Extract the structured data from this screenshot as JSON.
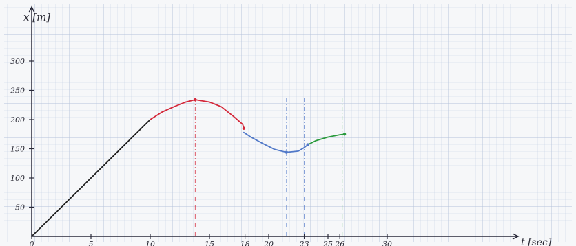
{
  "chart_data": {
    "type": "line",
    "xlabel": "t [sec]",
    "ylabel": "x [m]",
    "xlim": [
      0,
      35
    ],
    "ylim": [
      0,
      380
    ],
    "x_ticks": [
      0,
      5,
      10,
      15,
      18,
      20,
      23,
      25,
      26,
      30
    ],
    "x_tick_labels": [
      "0",
      "5",
      "10",
      "15",
      "18",
      "20",
      "23",
      "25",
      "26",
      "30"
    ],
    "y_ticks": [
      50,
      100,
      150,
      200,
      250,
      300
    ],
    "y_tick_labels": [
      "50",
      "100",
      "150",
      "200",
      "250",
      "300"
    ],
    "grid": true,
    "series": [
      {
        "color": "#1e1e1e",
        "points": [
          [
            0,
            0
          ],
          [
            10,
            200
          ]
        ]
      },
      {
        "color": "#d4283a",
        "points": [
          [
            10,
            200
          ],
          [
            11,
            213
          ],
          [
            12,
            222
          ],
          [
            13,
            230
          ],
          [
            13.8,
            234
          ],
          [
            15,
            230
          ],
          [
            16,
            222
          ],
          [
            17,
            206
          ],
          [
            17.8,
            192
          ],
          [
            17.9,
            185
          ]
        ]
      },
      {
        "color": "#5078c8",
        "points": [
          [
            17.9,
            178
          ],
          [
            18.5,
            170
          ],
          [
            19.5,
            159
          ],
          [
            20.5,
            149
          ],
          [
            21.5,
            144
          ],
          [
            22.5,
            146
          ],
          [
            23,
            152
          ],
          [
            23.3,
            157
          ]
        ]
      },
      {
        "color": "#2a9a3c",
        "points": [
          [
            23.3,
            157
          ],
          [
            24,
            164
          ],
          [
            25,
            170
          ],
          [
            26,
            174
          ],
          [
            26.4,
            175
          ]
        ]
      }
    ],
    "reference_lines": [
      {
        "x": 13.8,
        "color": "#d4283a"
      },
      {
        "x": 21.5,
        "color": "#5078c8"
      },
      {
        "x": 23,
        "color": "#5078c8"
      },
      {
        "x": 26.2,
        "color": "#2a9a3c"
      }
    ],
    "markers": [
      {
        "x": 13.8,
        "y": 234,
        "color": "#d4283a"
      },
      {
        "x": 17.9,
        "y": 185,
        "color": "#d4283a"
      },
      {
        "x": 21.5,
        "y": 144,
        "color": "#5078c8"
      },
      {
        "x": 23.3,
        "y": 157,
        "color": "#5078c8"
      },
      {
        "x": 26.4,
        "y": 175,
        "color": "#2a9a3c"
      }
    ]
  }
}
